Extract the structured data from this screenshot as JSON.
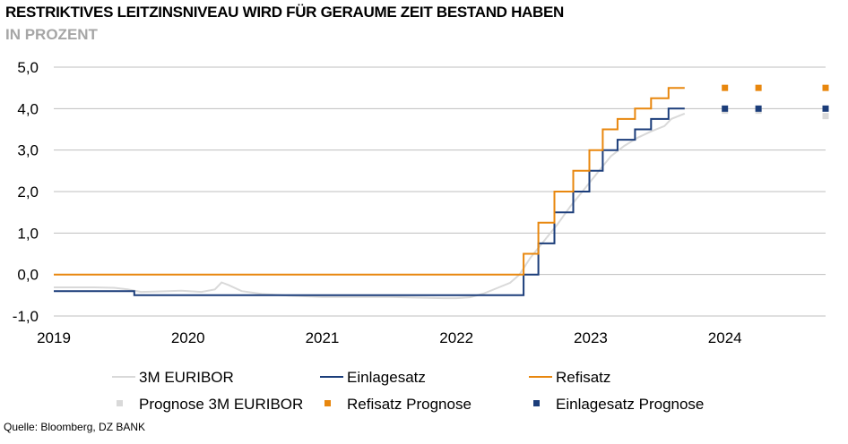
{
  "title": "RESTRIKTIVES LEITZINSNIVEAU WIRD FÜR GERAUME ZEIT BESTAND HABEN",
  "subtitle": "IN PROZENT",
  "source": "Quelle: Bloomberg, DZ BANK",
  "chart_data": {
    "type": "line",
    "title": "RESTRIKTIVES LEITZINSNIVEAU WIRD FÜR GERAUME ZEIT BESTAND HABEN",
    "ylabel": "IN PROZENT",
    "xlim": [
      2019.0,
      2024.75
    ],
    "ylim": [
      -1.0,
      5.0
    ],
    "yticks": [
      "5,0",
      "4,0",
      "3,0",
      "2,0",
      "1,0",
      "0,0",
      "-1,0"
    ],
    "xticks": [
      "2019",
      "2020",
      "2021",
      "2022",
      "2023",
      "2024"
    ],
    "grid": "horizontal",
    "legend_position": "bottom",
    "colors": {
      "euribor": "#d9d9d9",
      "einlagesatz": "#1b3d7a",
      "refisatz": "#e8870e",
      "prognose_euribor": "#d9d9d9",
      "prognose_refisatz": "#e8870e",
      "prognose_einlagesatz": "#1b3d7a"
    },
    "series": [
      {
        "name": "3M EURIBOR",
        "style": "line",
        "points": [
          [
            2019.0,
            -0.31
          ],
          [
            2019.3,
            -0.31
          ],
          [
            2019.45,
            -0.32
          ],
          [
            2019.55,
            -0.36
          ],
          [
            2019.65,
            -0.42
          ],
          [
            2019.75,
            -0.41
          ],
          [
            2019.95,
            -0.39
          ],
          [
            2020.1,
            -0.42
          ],
          [
            2020.2,
            -0.36
          ],
          [
            2020.25,
            -0.19
          ],
          [
            2020.3,
            -0.25
          ],
          [
            2020.4,
            -0.4
          ],
          [
            2020.55,
            -0.47
          ],
          [
            2020.75,
            -0.51
          ],
          [
            2021.0,
            -0.54
          ],
          [
            2021.5,
            -0.54
          ],
          [
            2021.9,
            -0.57
          ],
          [
            2022.0,
            -0.57
          ],
          [
            2022.1,
            -0.55
          ],
          [
            2022.2,
            -0.46
          ],
          [
            2022.3,
            -0.33
          ],
          [
            2022.4,
            -0.2
          ],
          [
            2022.47,
            0.0
          ],
          [
            2022.55,
            0.4
          ],
          [
            2022.65,
            0.8
          ],
          [
            2022.75,
            1.2
          ],
          [
            2022.85,
            1.65
          ],
          [
            2022.95,
            2.05
          ],
          [
            2023.05,
            2.45
          ],
          [
            2023.15,
            2.85
          ],
          [
            2023.25,
            3.1
          ],
          [
            2023.35,
            3.3
          ],
          [
            2023.45,
            3.45
          ],
          [
            2023.55,
            3.58
          ],
          [
            2023.6,
            3.75
          ],
          [
            2023.7,
            3.88
          ]
        ]
      },
      {
        "name": "Einlagesatz",
        "style": "step",
        "points": [
          [
            2019.0,
            -0.4
          ],
          [
            2019.6,
            -0.4
          ],
          [
            2019.6,
            -0.5
          ],
          [
            2022.5,
            -0.5
          ],
          [
            2022.5,
            0.0
          ],
          [
            2022.61,
            0.0
          ],
          [
            2022.61,
            0.75
          ],
          [
            2022.73,
            0.75
          ],
          [
            2022.73,
            1.5
          ],
          [
            2022.87,
            1.5
          ],
          [
            2022.87,
            2.0
          ],
          [
            2022.99,
            2.0
          ],
          [
            2022.99,
            2.5
          ],
          [
            2023.09,
            2.5
          ],
          [
            2023.09,
            3.0
          ],
          [
            2023.2,
            3.0
          ],
          [
            2023.2,
            3.25
          ],
          [
            2023.33,
            3.25
          ],
          [
            2023.33,
            3.5
          ],
          [
            2023.45,
            3.5
          ],
          [
            2023.45,
            3.75
          ],
          [
            2023.58,
            3.75
          ],
          [
            2023.58,
            4.0
          ],
          [
            2023.7,
            4.0
          ]
        ]
      },
      {
        "name": "Refisatz",
        "style": "step",
        "points": [
          [
            2019.0,
            0.0
          ],
          [
            2022.5,
            0.0
          ],
          [
            2022.5,
            0.5
          ],
          [
            2022.61,
            0.5
          ],
          [
            2022.61,
            1.25
          ],
          [
            2022.73,
            1.25
          ],
          [
            2022.73,
            2.0
          ],
          [
            2022.87,
            2.0
          ],
          [
            2022.87,
            2.5
          ],
          [
            2022.99,
            2.5
          ],
          [
            2022.99,
            3.0
          ],
          [
            2023.09,
            3.0
          ],
          [
            2023.09,
            3.5
          ],
          [
            2023.2,
            3.5
          ],
          [
            2023.2,
            3.75
          ],
          [
            2023.33,
            3.75
          ],
          [
            2023.33,
            4.0
          ],
          [
            2023.45,
            4.0
          ],
          [
            2023.45,
            4.25
          ],
          [
            2023.58,
            4.25
          ],
          [
            2023.58,
            4.5
          ],
          [
            2023.7,
            4.5
          ]
        ]
      },
      {
        "name": "Prognose 3M EURIBOR",
        "style": "marker",
        "points": [
          [
            2024.0,
            3.95
          ],
          [
            2024.25,
            3.95
          ],
          [
            2024.75,
            3.82
          ]
        ]
      },
      {
        "name": "Refisatz Prognose",
        "style": "marker",
        "points": [
          [
            2024.0,
            4.5
          ],
          [
            2024.25,
            4.5
          ],
          [
            2024.75,
            4.5
          ]
        ]
      },
      {
        "name": "Einlagesatz Prognose",
        "style": "marker",
        "points": [
          [
            2024.0,
            4.0
          ],
          [
            2024.25,
            4.0
          ],
          [
            2024.75,
            4.0
          ]
        ]
      }
    ]
  }
}
